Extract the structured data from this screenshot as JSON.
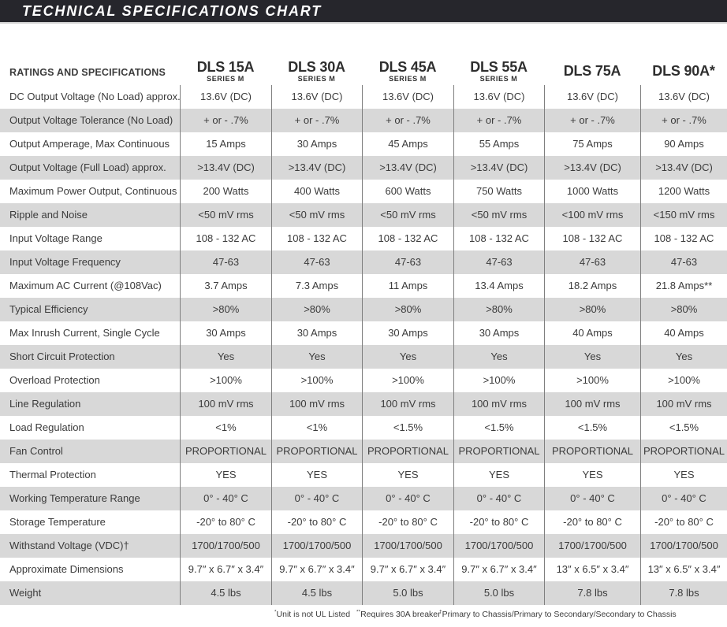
{
  "title": "TECHNICAL SPECIFICATIONS CHART",
  "colors": {
    "banner_background": "#26262c",
    "banner_text": "#ffffff",
    "row_stripe": "#d8d8d8",
    "column_rule": "#7f7f7f",
    "body_text": "#3b3b3b"
  },
  "table": {
    "corner_label": "RATINGS AND SPECIFICATIONS",
    "columns": [
      {
        "model": "DLS 15A",
        "series": "SERIES M"
      },
      {
        "model": "DLS 30A",
        "series": "SERIES M"
      },
      {
        "model": "DLS 45A",
        "series": "SERIES M"
      },
      {
        "model": "DLS 55A",
        "series": "SERIES M"
      },
      {
        "model": "DLS 75A",
        "series": ""
      },
      {
        "model": "DLS 90A*",
        "series": ""
      }
    ],
    "rows": [
      {
        "label": "DC Output Voltage (No Load) approx.",
        "values": [
          "13.6V (DC)",
          "13.6V (DC)",
          "13.6V (DC)",
          "13.6V (DC)",
          "13.6V (DC)",
          "13.6V (DC)"
        ]
      },
      {
        "label": "Output Voltage Tolerance (No Load)",
        "values": [
          "+ or - .7%",
          "+ or - .7%",
          "+ or - .7%",
          "+ or - .7%",
          "+ or - .7%",
          "+ or - .7%"
        ]
      },
      {
        "label": "Output Amperage, Max Continuous",
        "values": [
          "15 Amps",
          "30 Amps",
          "45 Amps",
          "55 Amps",
          "75 Amps",
          "90 Amps"
        ]
      },
      {
        "label": "Output Voltage (Full Load) approx.",
        "values": [
          ">13.4V (DC)",
          ">13.4V (DC)",
          ">13.4V (DC)",
          ">13.4V (DC)",
          ">13.4V (DC)",
          ">13.4V (DC)"
        ]
      },
      {
        "label": "Maximum Power Output, Continuous",
        "values": [
          "200 Watts",
          "400 Watts",
          "600 Watts",
          "750 Watts",
          "1000 Watts",
          "1200 Watts"
        ]
      },
      {
        "label": "Ripple and Noise",
        "values": [
          "<50 mV rms",
          "<50 mV rms",
          "<50 mV rms",
          "<50 mV rms",
          "<100 mV rms",
          "<150 mV rms"
        ]
      },
      {
        "label": "Input Voltage Range",
        "values": [
          "108 - 132 AC",
          "108 - 132 AC",
          "108 - 132 AC",
          "108 - 132 AC",
          "108 - 132 AC",
          "108 - 132 AC"
        ]
      },
      {
        "label": "Input Voltage Frequency",
        "values": [
          "47-63",
          "47-63",
          "47-63",
          "47-63",
          "47-63",
          "47-63"
        ]
      },
      {
        "label": "Maximum AC Current (@108Vac)",
        "values": [
          "3.7 Amps",
          "7.3 Amps",
          "11 Amps",
          "13.4 Amps",
          "18.2 Amps",
          "21.8 Amps**"
        ]
      },
      {
        "label": "Typical Efficiency",
        "values": [
          ">80%",
          ">80%",
          ">80%",
          ">80%",
          ">80%",
          ">80%"
        ]
      },
      {
        "label": "Max Inrush Current, Single Cycle",
        "values": [
          "30 Amps",
          "30 Amps",
          "30 Amps",
          "30 Amps",
          "40 Amps",
          "40 Amps"
        ]
      },
      {
        "label": "Short Circuit Protection",
        "values": [
          "Yes",
          "Yes",
          "Yes",
          "Yes",
          "Yes",
          "Yes"
        ]
      },
      {
        "label": "Overload Protection",
        "values": [
          ">100%",
          ">100%",
          ">100%",
          ">100%",
          ">100%",
          ">100%"
        ]
      },
      {
        "label": "Line Regulation",
        "values": [
          "100 mV rms",
          "100 mV rms",
          "100 mV rms",
          "100 mV rms",
          "100 mV rms",
          "100 mV rms"
        ]
      },
      {
        "label": "Load Regulation",
        "values": [
          "<1%",
          "<1%",
          "<1.5%",
          "<1.5%",
          "<1.5%",
          "<1.5%"
        ]
      },
      {
        "label": "Fan Control",
        "values": [
          "PROPORTIONAL",
          "PROPORTIONAL",
          "PROPORTIONAL",
          "PROPORTIONAL",
          "PROPORTIONAL",
          "PROPORTIONAL"
        ]
      },
      {
        "label": "Thermal Protection",
        "values": [
          "YES",
          "YES",
          "YES",
          "YES",
          "YES",
          "YES"
        ]
      },
      {
        "label": "Working Temperature Range",
        "values": [
          "0° - 40° C",
          "0° - 40° C",
          "0° - 40° C",
          "0° - 40° C",
          "0° - 40° C",
          "0° - 40° C"
        ]
      },
      {
        "label": "Storage Temperature",
        "values": [
          "-20° to 80° C",
          "-20° to 80° C",
          "-20° to 80° C",
          "-20° to 80° C",
          "-20° to 80° C",
          "-20° to 80° C"
        ]
      },
      {
        "label": "Withstand Voltage (VDC)†",
        "values": [
          "1700/1700/500",
          "1700/1700/500",
          "1700/1700/500",
          "1700/1700/500",
          "1700/1700/500",
          "1700/1700/500"
        ]
      },
      {
        "label": "Approximate Dimensions",
        "values": [
          "9.7″ x 6.7″ x 3.4″",
          "9.7″ x 6.7″ x 3.4″",
          "9.7″ x 6.7″ x 3.4″",
          "9.7″ x 6.7″ x 3.4″",
          "13″ x 6.5″ x 3.4″",
          "13″ x 6.5″ x 3.4″"
        ]
      },
      {
        "label": "Weight",
        "values": [
          "4.5 lbs",
          "4.5 lbs",
          "5.0 lbs",
          "5.0 lbs",
          "7.8 lbs",
          "7.8 lbs"
        ]
      }
    ]
  },
  "footnotes": [
    {
      "sup": "*",
      "text": "Unit is not UL Listed"
    },
    {
      "sup": "**",
      "text": "Requires 30A breaker"
    },
    {
      "sup": "†",
      "text": "Primary to Chassis/Primary to Secondary/Secondary to Chassis"
    }
  ]
}
